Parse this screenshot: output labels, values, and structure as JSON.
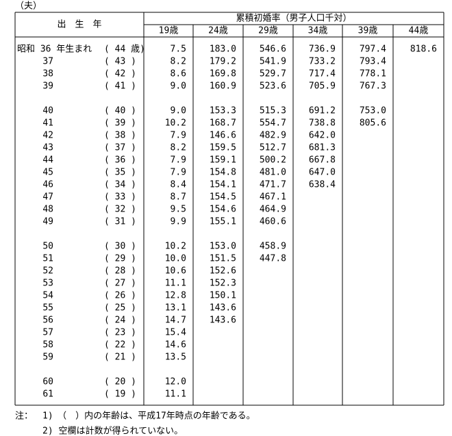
{
  "header": {
    "label": "（夫）",
    "birth_year": "出　生　年",
    "group_title": "累積初婚率（男子人口千対）",
    "columns": [
      "19歳",
      "24歳",
      "29歳",
      "34歳",
      "39歳",
      "44歳"
    ]
  },
  "table": {
    "groups": [
      [
        [
          "昭和 36 年生まれ",
          "( 44 歳)",
          "7.5",
          "183.0",
          "546.6",
          "736.9",
          "797.4",
          "818.6"
        ],
        [
          "37",
          "( 43 )",
          "8.2",
          "179.2",
          "541.9",
          "733.2",
          "793.4",
          null
        ],
        [
          "38",
          "( 42 )",
          "8.6",
          "169.8",
          "529.7",
          "717.4",
          "778.1",
          null
        ],
        [
          "39",
          "( 41 )",
          "9.0",
          "160.9",
          "523.6",
          "705.9",
          "767.3",
          null
        ]
      ],
      [
        [
          "40",
          "( 40 )",
          "9.0",
          "153.3",
          "515.3",
          "691.2",
          "753.0",
          null
        ],
        [
          "41",
          "( 39 )",
          "10.2",
          "168.7",
          "554.7",
          "738.8",
          "805.6",
          null
        ],
        [
          "42",
          "( 38 )",
          "7.9",
          "146.6",
          "482.9",
          "642.0",
          null,
          null
        ],
        [
          "43",
          "( 37 )",
          "8.2",
          "159.5",
          "512.7",
          "681.3",
          null,
          null
        ],
        [
          "44",
          "( 36 )",
          "7.9",
          "159.1",
          "500.2",
          "667.8",
          null,
          null
        ],
        [
          "45",
          "( 35 )",
          "7.9",
          "154.8",
          "481.0",
          "647.0",
          null,
          null
        ],
        [
          "46",
          "( 34 )",
          "8.4",
          "154.1",
          "471.7",
          "638.4",
          null,
          null
        ],
        [
          "47",
          "( 33 )",
          "8.7",
          "154.5",
          "467.1",
          null,
          null,
          null
        ],
        [
          "48",
          "( 32 )",
          "9.5",
          "154.6",
          "464.9",
          null,
          null,
          null
        ],
        [
          "49",
          "( 31 )",
          "9.9",
          "155.1",
          "460.6",
          null,
          null,
          null
        ]
      ],
      [
        [
          "50",
          "( 30 )",
          "10.2",
          "153.0",
          "458.9",
          null,
          null,
          null
        ],
        [
          "51",
          "( 29 )",
          "10.0",
          "151.5",
          "447.8",
          null,
          null,
          null
        ],
        [
          "52",
          "( 28 )",
          "10.6",
          "152.6",
          null,
          null,
          null,
          null
        ],
        [
          "53",
          "( 27 )",
          "11.1",
          "152.3",
          null,
          null,
          null,
          null
        ],
        [
          "54",
          "( 26 )",
          "12.8",
          "150.1",
          null,
          null,
          null,
          null
        ],
        [
          "55",
          "( 25 )",
          "13.1",
          "143.6",
          null,
          null,
          null,
          null
        ],
        [
          "56",
          "( 24 )",
          "14.7",
          "143.6",
          null,
          null,
          null,
          null
        ],
        [
          "57",
          "( 23 )",
          "15.4",
          null,
          null,
          null,
          null,
          null
        ],
        [
          "58",
          "( 22 )",
          "14.6",
          null,
          null,
          null,
          null,
          null
        ],
        [
          "59",
          "( 21 )",
          "13.5",
          null,
          null,
          null,
          null,
          null
        ]
      ],
      [
        [
          "60",
          "( 20 )",
          "12.0",
          null,
          null,
          null,
          null,
          null
        ],
        [
          "61",
          "( 19 )",
          "11.1",
          null,
          null,
          null,
          null,
          null
        ]
      ]
    ]
  },
  "notes": {
    "prefix": "注：",
    "items": [
      "1)　（　）内の年齢は、平成17年時点の年齢である。",
      "2) 空欄は計数が得られていない。"
    ]
  }
}
